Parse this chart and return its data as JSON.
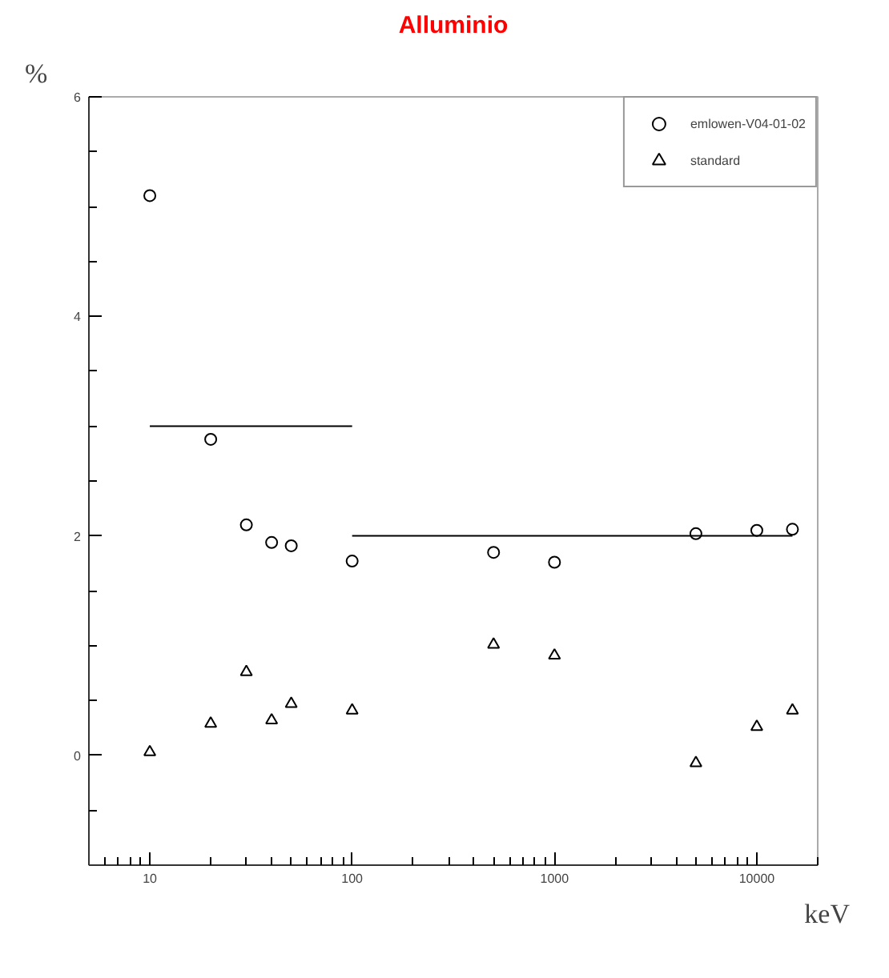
{
  "chart_data": {
    "type": "scatter",
    "title": "Alluminio",
    "xlabel": "keV",
    "ylabel": "%",
    "log": "x",
    "xlim": [
      5,
      20000
    ],
    "ylim": [
      -1,
      6
    ],
    "xticks": [
      10,
      100,
      1000,
      10000
    ],
    "yticks": [
      {
        "value": -0.5,
        "label": null
      },
      0,
      {
        "value": 0.5,
        "label": null
      },
      {
        "value": 1,
        "label": null
      },
      {
        "value": 1.5,
        "label": null
      },
      2,
      {
        "value": 2.5,
        "label": null
      },
      {
        "value": 3,
        "label": null
      },
      {
        "value": 3.5,
        "label": null
      },
      4,
      {
        "value": 4.5,
        "label": null
      },
      {
        "value": 5,
        "label": null
      },
      {
        "value": 5.5,
        "label": null
      },
      6
    ],
    "grid": false,
    "legend": "top right",
    "x": [
      10,
      20,
      30,
      40,
      50,
      100,
      500,
      1000,
      5000,
      10000,
      15000
    ],
    "series": [
      {
        "name": "emlowen-V04-01-02",
        "color": "#000000",
        "marker": "circle",
        "values": [
          5.1,
          2.88,
          2.1,
          1.94,
          1.91,
          1.77,
          1.85,
          1.76,
          2.02,
          2.05,
          2.06
        ]
      },
      {
        "name": "standard",
        "color": "#000000",
        "marker": "triangle",
        "values": [
          0.03,
          0.29,
          0.76,
          0.32,
          0.47,
          0.41,
          1.01,
          0.91,
          -0.07,
          0.26,
          0.41
        ]
      },
      {
        "type": "line",
        "color": "#000000",
        "marker": "none",
        "x": [
          10,
          100
        ],
        "values": [
          3,
          3
        ]
      },
      {
        "type": "line",
        "color": "#000000",
        "marker": "none",
        "x": [
          100,
          15000
        ],
        "values": [
          2,
          2
        ]
      }
    ]
  }
}
